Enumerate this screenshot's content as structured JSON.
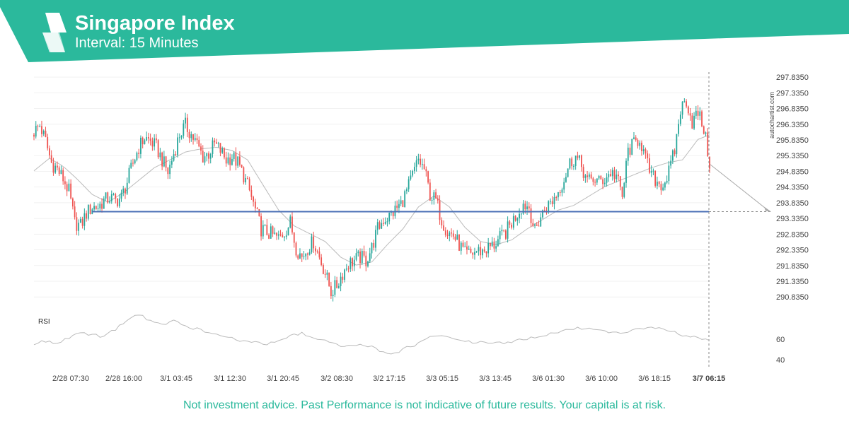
{
  "header": {
    "title": "Singapore Index",
    "subtitle": "Interval: 15 Minutes",
    "brand_color": "#2bb99c",
    "logo_icon": "autochartist-logo-icon"
  },
  "watermark": "autochartist.com",
  "disclaimer": "Not investment advice. Past Performance is not indicative of future results. Your capital is at risk.",
  "colors": {
    "up_candle": "#26a69a",
    "down_candle": "#ef5350",
    "support_line": "#4a6fb5",
    "moving_average": "#bbbbbb",
    "rsi_line": "#bbbbbb",
    "forecast_arrow": "#aaaaaa"
  },
  "chart_data": {
    "type": "candlestick",
    "y_ticks": [
      "297.8350",
      "297.3350",
      "296.8350",
      "296.3350",
      "295.8350",
      "295.3350",
      "294.8350",
      "294.3350",
      "293.8350",
      "293.3350",
      "292.8350",
      "292.3350",
      "291.8350",
      "291.3350",
      "290.8350"
    ],
    "ylim": [
      290.75,
      297.95
    ],
    "x_ticks": [
      "2/28 07:30",
      "2/28 16:00",
      "3/1 03:45",
      "3/1 12:30",
      "3/1 20:45",
      "3/2 08:30",
      "3/2 17:15",
      "3/3 05:15",
      "3/3 13:45",
      "3/6 01:30",
      "3/6 10:00",
      "3/6 18:15",
      "3/7 06:15"
    ],
    "current_time_label": "3/7 06:15",
    "support_level": 293.55,
    "forecast": {
      "from": 295.05,
      "to": 293.55
    },
    "close_path": [
      [
        0,
        296.1
      ],
      [
        3,
        296.3
      ],
      [
        6,
        295.8
      ],
      [
        9,
        295.1
      ],
      [
        12,
        294.9
      ],
      [
        15,
        294.6
      ],
      [
        18,
        294.2
      ],
      [
        21,
        293.2
      ],
      [
        24,
        293.1
      ],
      [
        27,
        293.5
      ],
      [
        30,
        293.7
      ],
      [
        33,
        293.7
      ],
      [
        36,
        293.9
      ],
      [
        39,
        294.0
      ],
      [
        42,
        293.9
      ],
      [
        45,
        294.0
      ],
      [
        48,
        294.5
      ],
      [
        51,
        295.1
      ],
      [
        54,
        295.6
      ],
      [
        57,
        295.9
      ],
      [
        60,
        295.8
      ],
      [
        63,
        295.6
      ],
      [
        66,
        295.2
      ],
      [
        69,
        294.8
      ],
      [
        72,
        295.4
      ],
      [
        75,
        296.0
      ],
      [
        78,
        296.3
      ],
      [
        81,
        296.0
      ],
      [
        84,
        295.7
      ],
      [
        87,
        295.3
      ],
      [
        90,
        295.4
      ],
      [
        93,
        295.7
      ],
      [
        96,
        295.5
      ],
      [
        99,
        295.2
      ],
      [
        102,
        295.3
      ],
      [
        105,
        295.1
      ],
      [
        108,
        294.7
      ],
      [
        111,
        294.2
      ],
      [
        114,
        293.6
      ],
      [
        117,
        293.0
      ],
      [
        120,
        292.9
      ],
      [
        123,
        292.8
      ],
      [
        126,
        292.7
      ],
      [
        129,
        292.9
      ],
      [
        132,
        293.2
      ],
      [
        135,
        292.4
      ],
      [
        138,
        292.1
      ],
      [
        141,
        292.4
      ],
      [
        144,
        292.6
      ],
      [
        147,
        292.1
      ],
      [
        150,
        291.6
      ],
      [
        153,
        291.0
      ],
      [
        156,
        291.2
      ],
      [
        159,
        291.6
      ],
      [
        162,
        291.9
      ],
      [
        165,
        292.0
      ],
      [
        168,
        292.1
      ],
      [
        171,
        292.0
      ],
      [
        174,
        292.4
      ],
      [
        177,
        293.0
      ],
      [
        180,
        293.3
      ],
      [
        183,
        293.4
      ],
      [
        186,
        293.6
      ],
      [
        189,
        293.8
      ],
      [
        192,
        294.2
      ],
      [
        195,
        294.7
      ],
      [
        198,
        295.2
      ],
      [
        201,
        294.9
      ],
      [
        204,
        294.1
      ],
      [
        207,
        293.9
      ],
      [
        210,
        293.3
      ],
      [
        213,
        292.9
      ],
      [
        216,
        292.8
      ],
      [
        219,
        292.5
      ],
      [
        222,
        292.2
      ],
      [
        225,
        292.2
      ],
      [
        228,
        292.3
      ],
      [
        231,
        292.3
      ],
      [
        234,
        292.4
      ],
      [
        237,
        292.5
      ],
      [
        240,
        292.7
      ],
      [
        243,
        292.9
      ],
      [
        246,
        293.2
      ],
      [
        249,
        293.5
      ],
      [
        252,
        293.8
      ],
      [
        255,
        293.7
      ],
      [
        258,
        292.9
      ],
      [
        261,
        293.4
      ],
      [
        264,
        293.7
      ],
      [
        267,
        293.9
      ],
      [
        270,
        294.2
      ],
      [
        273,
        294.6
      ],
      [
        276,
        295.1
      ],
      [
        279,
        295.3
      ],
      [
        282,
        295.0
      ],
      [
        285,
        294.5
      ],
      [
        288,
        294.6
      ],
      [
        291,
        294.5
      ],
      [
        294,
        294.6
      ],
      [
        297,
        294.8
      ],
      [
        300,
        294.7
      ],
      [
        303,
        294.0
      ],
      [
        306,
        295.5
      ],
      [
        309,
        295.7
      ],
      [
        312,
        295.9
      ],
      [
        315,
        295.2
      ],
      [
        318,
        294.7
      ],
      [
        321,
        294.5
      ],
      [
        324,
        294.4
      ],
      [
        327,
        294.8
      ],
      [
        330,
        295.5
      ],
      [
        333,
        296.8
      ],
      [
        336,
        297.1
      ],
      [
        339,
        296.4
      ],
      [
        342,
        296.7
      ],
      [
        345,
        296.2
      ],
      [
        348,
        295.1
      ]
    ],
    "moving_average_path": [
      [
        0,
        294.85
      ],
      [
        8,
        295.25
      ],
      [
        15,
        295.0
      ],
      [
        22,
        294.6
      ],
      [
        30,
        294.1
      ],
      [
        38,
        293.85
      ],
      [
        46,
        294.15
      ],
      [
        54,
        294.55
      ],
      [
        62,
        294.95
      ],
      [
        70,
        295.2
      ],
      [
        78,
        295.45
      ],
      [
        86,
        295.55
      ],
      [
        94,
        295.6
      ],
      [
        102,
        295.5
      ],
      [
        110,
        295.2
      ],
      [
        118,
        294.4
      ],
      [
        126,
        293.6
      ],
      [
        134,
        293.1
      ],
      [
        142,
        292.85
      ],
      [
        150,
        292.6
      ],
      [
        158,
        292.1
      ],
      [
        166,
        291.85
      ],
      [
        174,
        291.95
      ],
      [
        182,
        292.5
      ],
      [
        190,
        293.0
      ],
      [
        198,
        293.7
      ],
      [
        206,
        294.05
      ],
      [
        214,
        293.7
      ],
      [
        222,
        293.05
      ],
      [
        230,
        292.6
      ],
      [
        238,
        292.5
      ],
      [
        246,
        292.65
      ],
      [
        254,
        293.0
      ],
      [
        262,
        293.3
      ],
      [
        270,
        293.6
      ],
      [
        278,
        293.75
      ],
      [
        286,
        294.05
      ],
      [
        294,
        294.35
      ],
      [
        302,
        294.55
      ],
      [
        310,
        294.75
      ],
      [
        318,
        294.95
      ],
      [
        326,
        295.1
      ],
      [
        334,
        295.2
      ],
      [
        342,
        295.85
      ],
      [
        348,
        296.0
      ]
    ],
    "rsi": {
      "label": "RSI",
      "ticks": [
        60,
        40
      ],
      "ylim": [
        35,
        95
      ],
      "values": [
        [
          0,
          56
        ],
        [
          6,
          58
        ],
        [
          12,
          55
        ],
        [
          18,
          62
        ],
        [
          24,
          66
        ],
        [
          30,
          64
        ],
        [
          36,
          63
        ],
        [
          42,
          70
        ],
        [
          48,
          79
        ],
        [
          54,
          85
        ],
        [
          60,
          78
        ],
        [
          66,
          75
        ],
        [
          72,
          78
        ],
        [
          78,
          73
        ],
        [
          84,
          70
        ],
        [
          90,
          66
        ],
        [
          96,
          63
        ],
        [
          102,
          61
        ],
        [
          108,
          58
        ],
        [
          114,
          57
        ],
        [
          120,
          55
        ],
        [
          126,
          60
        ],
        [
          132,
          64
        ],
        [
          138,
          66
        ],
        [
          144,
          60
        ],
        [
          150,
          58
        ],
        [
          156,
          54
        ],
        [
          162,
          53
        ],
        [
          168,
          54
        ],
        [
          174,
          52
        ],
        [
          180,
          48
        ],
        [
          186,
          46
        ],
        [
          192,
          52
        ],
        [
          198,
          56
        ],
        [
          204,
          62
        ],
        [
          210,
          64
        ],
        [
          216,
          60
        ],
        [
          222,
          58
        ],
        [
          228,
          57
        ],
        [
          234,
          57
        ],
        [
          240,
          56
        ],
        [
          246,
          58
        ],
        [
          252,
          60
        ],
        [
          258,
          62
        ],
        [
          264,
          64
        ],
        [
          270,
          67
        ],
        [
          276,
          70
        ],
        [
          282,
          71
        ],
        [
          288,
          69
        ],
        [
          294,
          68
        ],
        [
          300,
          66
        ],
        [
          306,
          68
        ],
        [
          312,
          71
        ],
        [
          318,
          72
        ],
        [
          324,
          70
        ],
        [
          330,
          67
        ],
        [
          336,
          63
        ],
        [
          342,
          61
        ],
        [
          348,
          59
        ]
      ]
    },
    "grid": true,
    "legend": "none"
  }
}
